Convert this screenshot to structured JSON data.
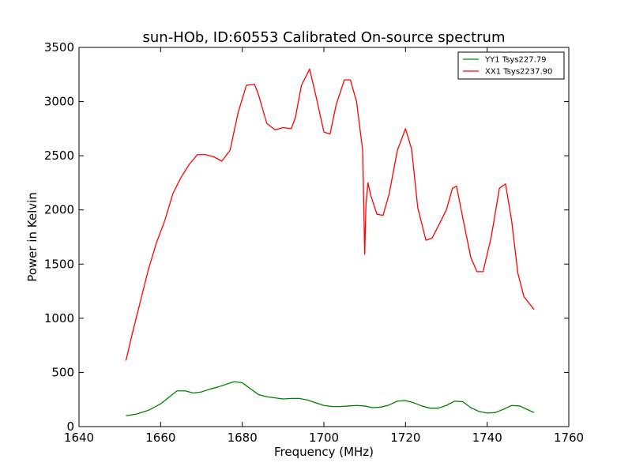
{
  "chart_data": {
    "type": "line",
    "title": "sun-HOb, ID:60553 Calibrated On-source spectrum",
    "xlabel": "Frequency (MHz)",
    "ylabel": "Power in Kelvin",
    "xlim": [
      1640,
      1760
    ],
    "ylim": [
      0,
      3500
    ],
    "xticks": [
      1640,
      1660,
      1680,
      1700,
      1720,
      1740,
      1760
    ],
    "yticks": [
      0,
      500,
      1000,
      1500,
      2000,
      2500,
      3000,
      3500
    ],
    "grid": false,
    "legend_position": "top-right",
    "series": [
      {
        "name": "YY1 Tsys227.79",
        "color": "#008000",
        "x": [
          1651.5,
          1654,
          1657,
          1660,
          1662,
          1664,
          1666,
          1668,
          1670,
          1672,
          1674,
          1676,
          1678,
          1680,
          1682,
          1684,
          1686,
          1688,
          1690,
          1692,
          1694,
          1696,
          1698,
          1700,
          1702,
          1704,
          1706,
          1708,
          1710,
          1712,
          1714,
          1716,
          1718,
          1720,
          1722,
          1724,
          1726,
          1728,
          1730,
          1732,
          1734,
          1736,
          1738,
          1740,
          1742,
          1744,
          1746,
          1748,
          1750,
          1751.5
        ],
        "y": [
          100,
          115,
          150,
          210,
          270,
          330,
          330,
          310,
          320,
          345,
          365,
          390,
          415,
          405,
          350,
          295,
          275,
          265,
          255,
          260,
          260,
          245,
          220,
          195,
          185,
          185,
          190,
          195,
          190,
          175,
          180,
          200,
          235,
          240,
          220,
          190,
          170,
          170,
          195,
          235,
          230,
          175,
          140,
          125,
          130,
          160,
          195,
          190,
          155,
          130
        ]
      },
      {
        "name": "XX1 Tsys2237.90",
        "color": "#ff0000",
        "x": [
          1651.5,
          1653,
          1655,
          1657,
          1659,
          1661,
          1663,
          1665,
          1667,
          1669,
          1671,
          1673,
          1675,
          1677,
          1679,
          1681,
          1683,
          1684,
          1686,
          1688,
          1690,
          1692,
          1693,
          1694.5,
          1696.5,
          1698,
          1700,
          1701.5,
          1703,
          1705,
          1706.5,
          1708,
          1709.5,
          1710,
          1710.3,
          1710.8,
          1711.5,
          1713,
          1714.5,
          1716,
          1718,
          1720,
          1721.5,
          1723,
          1725,
          1726.5,
          1728,
          1730,
          1731.5,
          1732.5,
          1734,
          1736,
          1737.5,
          1739,
          1741,
          1743,
          1744.5,
          1746,
          1747.5,
          1749,
          1751.5
        ],
        "y": [
          610,
          850,
          1150,
          1450,
          1700,
          1900,
          2150,
          2300,
          2420,
          2510,
          2510,
          2490,
          2450,
          2550,
          2900,
          3150,
          3160,
          3060,
          2800,
          2740,
          2760,
          2750,
          2850,
          3150,
          3300,
          3060,
          2720,
          2700,
          2970,
          3200,
          3200,
          3000,
          2550,
          1590,
          2050,
          2250,
          2130,
          1960,
          1950,
          2150,
          2550,
          2750,
          2560,
          2020,
          1720,
          1740,
          1850,
          2000,
          2200,
          2220,
          1930,
          1560,
          1430,
          1430,
          1750,
          2200,
          2240,
          1900,
          1420,
          1200,
          1080
        ]
      }
    ]
  }
}
